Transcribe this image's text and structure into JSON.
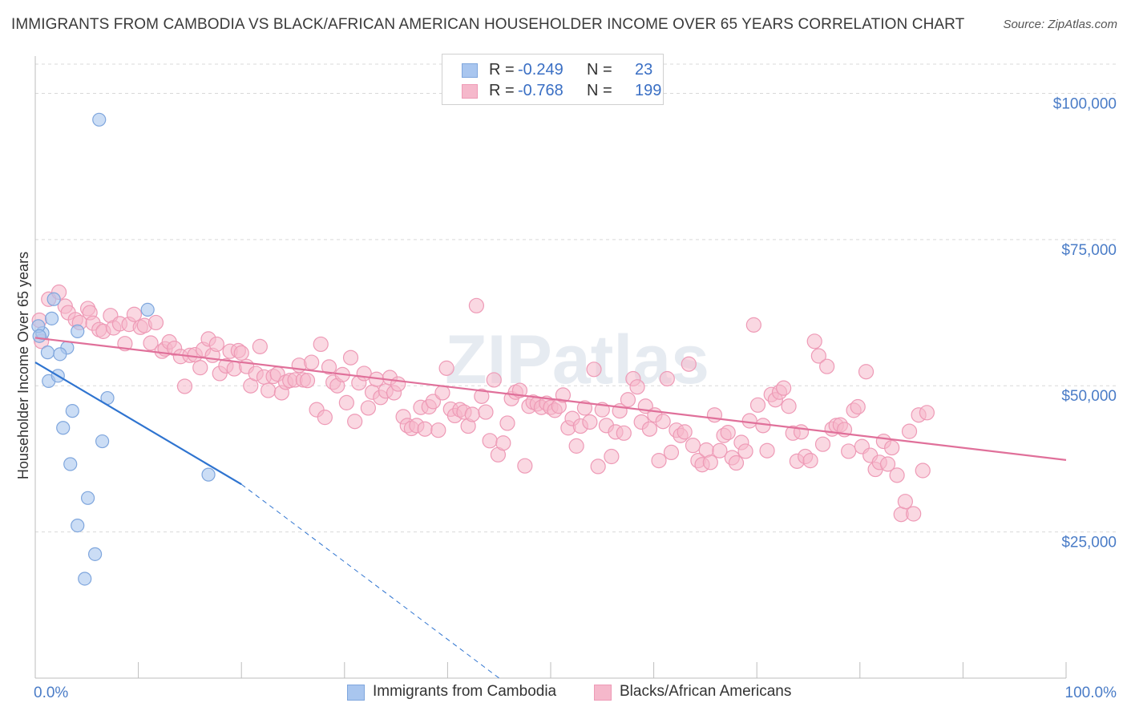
{
  "header": {
    "title": "IMMIGRANTS FROM CAMBODIA VS BLACK/AFRICAN AMERICAN HOUSEHOLDER INCOME OVER 65 YEARS CORRELATION CHART",
    "source": "Source: ZipAtlas.com"
  },
  "watermark": "ZIPatlas",
  "legend": {
    "rows": [
      {
        "r_label": "R =",
        "r_value": "-0.249",
        "n_label": "N =",
        "n_value": "23"
      },
      {
        "r_label": "R =",
        "r_value": "-0.768",
        "n_label": "N =",
        "n_value": "199"
      }
    ]
  },
  "bottom_legend": {
    "series1": "Immigrants from Cambodia",
    "series2": "Blacks/African Americans"
  },
  "colors": {
    "blue_fill": "#a9c6ef",
    "blue_stroke": "#7fa6dd",
    "blue_line": "#2f74d0",
    "pink_fill": "#f5b8cb",
    "pink_stroke": "#ee9ab6",
    "pink_line": "#e0709a",
    "tick_text": "#4a7cc7",
    "grid": "#d9d9d9"
  },
  "chart_data": {
    "type": "scatter",
    "title": "IMMIGRANTS FROM CAMBODIA VS BLACK/AFRICAN AMERICAN HOUSEHOLDER INCOME OVER 65 YEARS CORRELATION CHART",
    "xlabel": "",
    "ylabel": "Householder Income Over 65 years",
    "xlim": [
      0,
      100
    ],
    "ylim": [
      0,
      105000
    ],
    "x_tick_labels": [
      "0.0%",
      "100.0%"
    ],
    "y_ticks": [
      25000,
      50000,
      75000,
      100000
    ],
    "y_tick_labels": [
      "$25,000",
      "$50,000",
      "$75,000",
      "$100,000"
    ],
    "grid": true,
    "legend_position": "top-center",
    "series": [
      {
        "name": "Immigrants from Cambodia",
        "color": "#a9c6ef",
        "r": -0.249,
        "n": 23,
        "points": [
          [
            6.2,
            95500
          ],
          [
            0.7,
            59000
          ],
          [
            0.3,
            60200
          ],
          [
            0.4,
            58500
          ],
          [
            1.6,
            61500
          ],
          [
            1.8,
            64800
          ],
          [
            10.9,
            63000
          ],
          [
            4.1,
            59300
          ],
          [
            3.1,
            56500
          ],
          [
            1.2,
            55700
          ],
          [
            2.4,
            55400
          ],
          [
            1.3,
            50800
          ],
          [
            2.2,
            51700
          ],
          [
            7.0,
            47900
          ],
          [
            3.6,
            45700
          ],
          [
            2.7,
            42800
          ],
          [
            6.5,
            40500
          ],
          [
            3.4,
            36600
          ],
          [
            16.8,
            34800
          ],
          [
            5.1,
            30800
          ],
          [
            4.1,
            26100
          ],
          [
            5.8,
            21200
          ],
          [
            4.8,
            17000
          ]
        ],
        "trend": {
          "x_start": 0,
          "y_start": 54000,
          "x_solid_end": 20,
          "x_dashed_end": 45
        }
      },
      {
        "name": "Blacks/African Americans",
        "color": "#f5b8cb",
        "r": -0.768,
        "n": 199,
        "points": [
          [
            0.4,
            61200
          ],
          [
            0.6,
            57600
          ],
          [
            1.3,
            64800
          ],
          [
            2.3,
            66000
          ],
          [
            2.9,
            63600
          ],
          [
            3.2,
            62500
          ],
          [
            3.9,
            61300
          ],
          [
            4.3,
            60800
          ],
          [
            5.1,
            63200
          ],
          [
            5.3,
            62500
          ],
          [
            5.6,
            60700
          ],
          [
            6.2,
            59600
          ],
          [
            6.6,
            59300
          ],
          [
            7.3,
            62000
          ],
          [
            7.6,
            59900
          ],
          [
            8.2,
            60600
          ],
          [
            8.7,
            57200
          ],
          [
            9.1,
            60500
          ],
          [
            9.6,
            62200
          ],
          [
            10.2,
            60000
          ],
          [
            10.6,
            60300
          ],
          [
            11.2,
            57300
          ],
          [
            11.7,
            60800
          ],
          [
            12.3,
            55900
          ],
          [
            12.6,
            56300
          ],
          [
            13.0,
            57500
          ],
          [
            13.5,
            56400
          ],
          [
            14.1,
            55000
          ],
          [
            14.5,
            49900
          ],
          [
            15.0,
            55200
          ],
          [
            15.5,
            55300
          ],
          [
            16.0,
            53100
          ],
          [
            16.3,
            56200
          ],
          [
            16.8,
            58000
          ],
          [
            17.2,
            55200
          ],
          [
            17.6,
            57100
          ],
          [
            17.9,
            52100
          ],
          [
            18.5,
            53400
          ],
          [
            18.9,
            55900
          ],
          [
            19.3,
            52900
          ],
          [
            19.7,
            56000
          ],
          [
            20.0,
            55600
          ],
          [
            20.5,
            53300
          ],
          [
            20.9,
            50000
          ],
          [
            21.4,
            52100
          ],
          [
            21.8,
            56700
          ],
          [
            22.2,
            51500
          ],
          [
            22.6,
            49200
          ],
          [
            23.1,
            51600
          ],
          [
            23.5,
            52000
          ],
          [
            23.9,
            48800
          ],
          [
            24.3,
            50600
          ],
          [
            24.7,
            50900
          ],
          [
            25.2,
            51000
          ],
          [
            25.6,
            53500
          ],
          [
            26.0,
            51000
          ],
          [
            26.4,
            50900
          ],
          [
            26.8,
            54000
          ],
          [
            27.3,
            45900
          ],
          [
            27.7,
            57100
          ],
          [
            28.1,
            44600
          ],
          [
            28.5,
            53200
          ],
          [
            28.9,
            50600
          ],
          [
            29.3,
            50000
          ],
          [
            29.8,
            51900
          ],
          [
            30.2,
            47100
          ],
          [
            30.6,
            54800
          ],
          [
            31.0,
            43900
          ],
          [
            31.4,
            50500
          ],
          [
            31.9,
            52100
          ],
          [
            32.3,
            46200
          ],
          [
            32.7,
            48900
          ],
          [
            33.1,
            51100
          ],
          [
            33.5,
            48000
          ],
          [
            34.0,
            49100
          ],
          [
            34.4,
            51400
          ],
          [
            34.8,
            48800
          ],
          [
            35.2,
            50300
          ],
          [
            35.7,
            44700
          ],
          [
            36.1,
            43200
          ],
          [
            36.5,
            42700
          ],
          [
            37.0,
            43200
          ],
          [
            37.4,
            46300
          ],
          [
            37.8,
            42600
          ],
          [
            38.2,
            46400
          ],
          [
            38.6,
            47300
          ],
          [
            39.1,
            42400
          ],
          [
            39.5,
            48800
          ],
          [
            39.9,
            53000
          ],
          [
            40.3,
            46000
          ],
          [
            40.7,
            44900
          ],
          [
            41.2,
            45900
          ],
          [
            41.6,
            45500
          ],
          [
            42.0,
            43100
          ],
          [
            42.4,
            45100
          ],
          [
            42.8,
            63700
          ],
          [
            43.3,
            48200
          ],
          [
            43.7,
            45500
          ],
          [
            44.1,
            40600
          ],
          [
            44.5,
            51000
          ],
          [
            44.9,
            38200
          ],
          [
            45.4,
            40200
          ],
          [
            45.8,
            43600
          ],
          [
            46.2,
            47800
          ],
          [
            46.6,
            48900
          ],
          [
            47.0,
            49200
          ],
          [
            47.5,
            36300
          ],
          [
            47.9,
            46500
          ],
          [
            48.3,
            47200
          ],
          [
            48.7,
            46900
          ],
          [
            49.1,
            46300
          ],
          [
            49.6,
            47000
          ],
          [
            50.0,
            46300
          ],
          [
            50.4,
            45800
          ],
          [
            50.8,
            46500
          ],
          [
            51.2,
            48400
          ],
          [
            51.7,
            42800
          ],
          [
            52.1,
            44400
          ],
          [
            52.5,
            39700
          ],
          [
            52.9,
            43100
          ],
          [
            53.3,
            46200
          ],
          [
            53.8,
            43800
          ],
          [
            54.2,
            52800
          ],
          [
            54.6,
            36200
          ],
          [
            55.0,
            45900
          ],
          [
            55.4,
            43200
          ],
          [
            55.9,
            37900
          ],
          [
            56.3,
            42100
          ],
          [
            56.7,
            45700
          ],
          [
            57.1,
            41900
          ],
          [
            57.5,
            47600
          ],
          [
            58.0,
            51200
          ],
          [
            58.4,
            49800
          ],
          [
            58.8,
            43800
          ],
          [
            59.2,
            46500
          ],
          [
            59.6,
            42600
          ],
          [
            60.1,
            45000
          ],
          [
            60.5,
            37200
          ],
          [
            60.9,
            43900
          ],
          [
            61.3,
            51200
          ],
          [
            61.7,
            38600
          ],
          [
            62.2,
            42400
          ],
          [
            62.6,
            41500
          ],
          [
            63.0,
            42100
          ],
          [
            63.4,
            53700
          ],
          [
            63.8,
            39800
          ],
          [
            64.3,
            37200
          ],
          [
            64.7,
            36500
          ],
          [
            65.1,
            39000
          ],
          [
            65.5,
            36900
          ],
          [
            65.9,
            45000
          ],
          [
            66.4,
            38900
          ],
          [
            66.8,
            41500
          ],
          [
            67.2,
            42000
          ],
          [
            67.6,
            37700
          ],
          [
            68.0,
            36800
          ],
          [
            68.5,
            40300
          ],
          [
            68.9,
            38800
          ],
          [
            69.3,
            44000
          ],
          [
            69.7,
            60400
          ],
          [
            70.1,
            46700
          ],
          [
            70.6,
            43200
          ],
          [
            71.0,
            38900
          ],
          [
            71.4,
            48500
          ],
          [
            71.8,
            47600
          ],
          [
            72.2,
            48900
          ],
          [
            72.6,
            49600
          ],
          [
            73.1,
            46500
          ],
          [
            73.5,
            41900
          ],
          [
            73.9,
            37100
          ],
          [
            74.3,
            42100
          ],
          [
            74.7,
            37900
          ],
          [
            75.2,
            37200
          ],
          [
            75.6,
            57600
          ],
          [
            76.0,
            55100
          ],
          [
            76.4,
            40000
          ],
          [
            76.8,
            53300
          ],
          [
            77.3,
            42600
          ],
          [
            77.7,
            43200
          ],
          [
            78.1,
            43300
          ],
          [
            78.5,
            42500
          ],
          [
            78.9,
            38800
          ],
          [
            79.4,
            45800
          ],
          [
            79.8,
            46400
          ],
          [
            80.2,
            39600
          ],
          [
            80.6,
            52400
          ],
          [
            81.0,
            38100
          ],
          [
            81.5,
            35700
          ],
          [
            81.9,
            36900
          ],
          [
            82.3,
            40500
          ],
          [
            82.7,
            36600
          ],
          [
            83.1,
            39400
          ],
          [
            83.6,
            34700
          ],
          [
            84.0,
            28000
          ],
          [
            84.4,
            30200
          ],
          [
            84.8,
            42200
          ],
          [
            85.2,
            28100
          ],
          [
            85.7,
            45000
          ],
          [
            86.1,
            35500
          ],
          [
            86.5,
            45400
          ]
        ],
        "trend": {
          "x_start": 0,
          "y_start": 58200,
          "x_end": 100,
          "y_end": 37300
        }
      }
    ]
  }
}
